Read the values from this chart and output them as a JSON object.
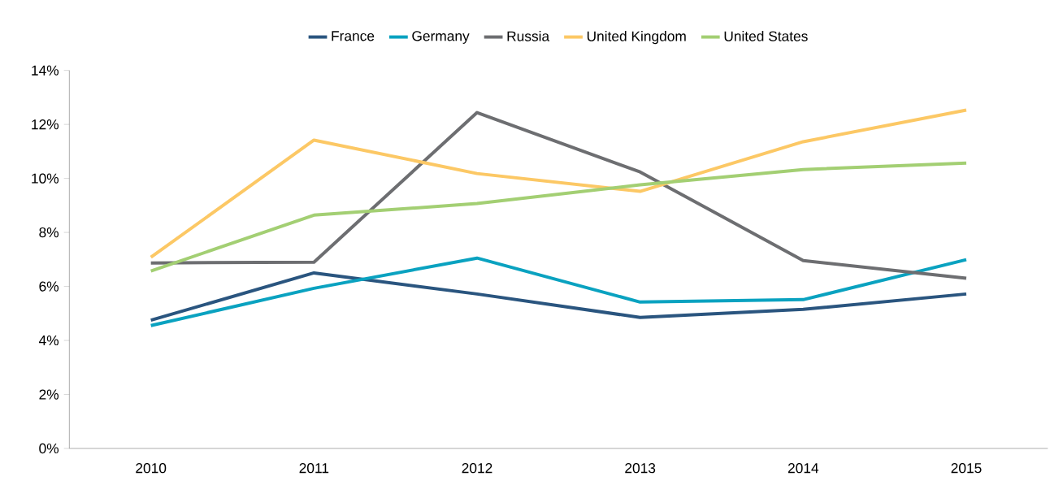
{
  "chart_data": {
    "type": "line",
    "categories": [
      "2010",
      "2011",
      "2012",
      "2013",
      "2014",
      "2015"
    ],
    "series": [
      {
        "name": "France",
        "color": "#2a557f",
        "values": [
          4.75,
          6.5,
          5.72,
          4.85,
          5.15,
          5.72
        ]
      },
      {
        "name": "Germany",
        "color": "#0aa2c0",
        "values": [
          4.55,
          5.93,
          7.05,
          5.42,
          5.51,
          6.99
        ]
      },
      {
        "name": "Russia",
        "color": "#6d6e71",
        "values": [
          6.87,
          6.9,
          12.44,
          10.24,
          6.96,
          6.3
        ]
      },
      {
        "name": "United Kingdom",
        "color": "#fcc865",
        "values": [
          7.08,
          11.42,
          10.18,
          9.52,
          11.36,
          12.53
        ]
      },
      {
        "name": "United States",
        "color": "#a3cf73",
        "values": [
          6.57,
          8.64,
          9.07,
          9.76,
          10.33,
          10.57
        ]
      }
    ],
    "ylim": [
      0,
      14
    ],
    "yticks": [
      {
        "value": 0,
        "label": "0%"
      },
      {
        "value": 2,
        "label": "2%"
      },
      {
        "value": 4,
        "label": "4%"
      },
      {
        "value": 6,
        "label": "6%"
      },
      {
        "value": 8,
        "label": "8%"
      },
      {
        "value": 10,
        "label": "10%"
      },
      {
        "value": 12,
        "label": "12%"
      },
      {
        "value": 14,
        "label": "14%"
      }
    ],
    "grid": false,
    "legend": "top",
    "marker": "none",
    "line_style": "solid"
  }
}
